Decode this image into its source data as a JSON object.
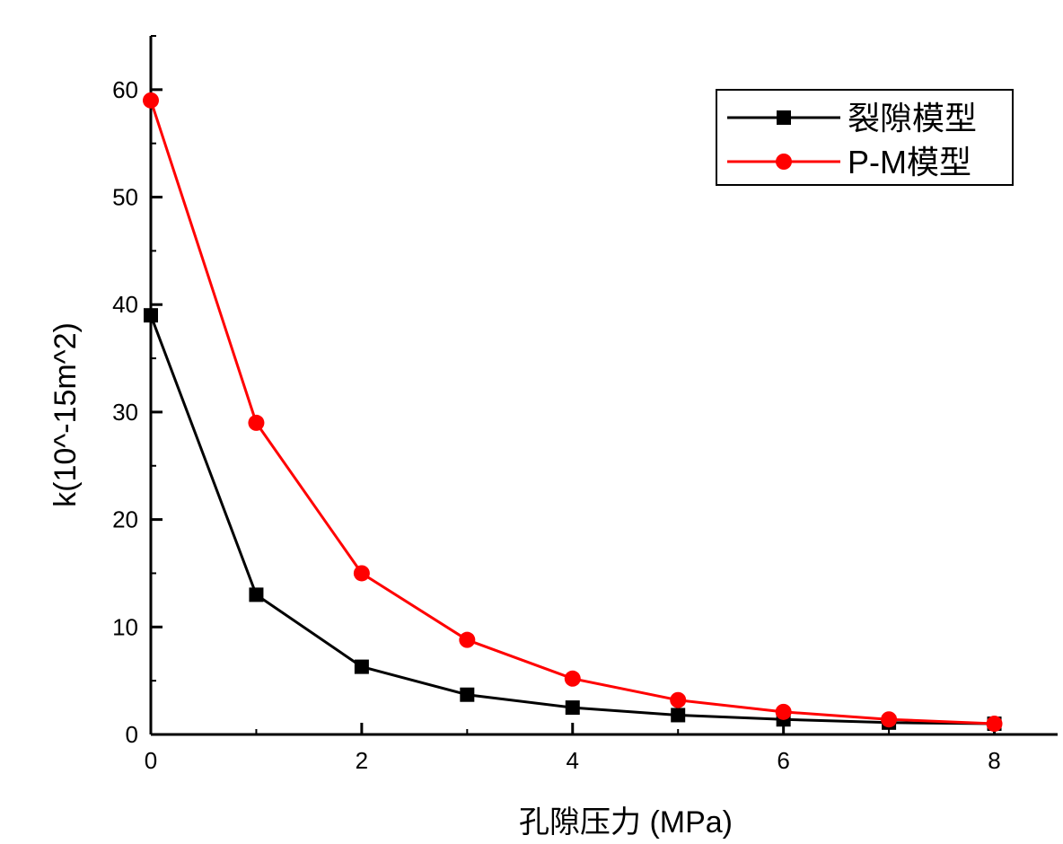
{
  "chart_data": {
    "type": "line",
    "title": "",
    "xlabel": "孔隙压力 (MPa)",
    "ylabel": "k(10^-15m^2)",
    "xlim": [
      0,
      8.6
    ],
    "ylim": [
      0,
      65
    ],
    "x_ticks": [
      0,
      2,
      4,
      6,
      8
    ],
    "y_ticks": [
      0,
      10,
      20,
      30,
      40,
      50,
      60
    ],
    "grid": false,
    "legend_position": "top-right",
    "x": [
      0,
      1,
      2,
      3,
      4,
      5,
      6,
      7,
      8
    ],
    "series": [
      {
        "name": "裂隙模型",
        "color": "#000000",
        "marker": "square",
        "values": [
          39,
          13,
          6.3,
          3.7,
          2.5,
          1.8,
          1.4,
          1.1,
          1.0
        ]
      },
      {
        "name": "P-M模型",
        "color": "#ff0000",
        "marker": "circle",
        "values": [
          59,
          29,
          15,
          8.8,
          5.2,
          3.2,
          2.1,
          1.4,
          1.0
        ]
      }
    ]
  }
}
